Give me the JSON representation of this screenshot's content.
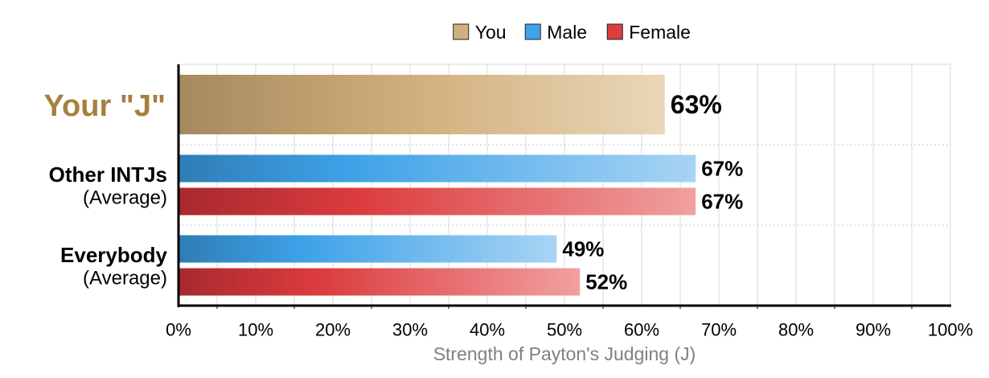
{
  "chart_data": {
    "type": "bar",
    "orientation": "horizontal",
    "xlabel": "Strength of Payton's Judging (J)",
    "xlim": [
      0,
      100
    ],
    "ticks": [
      "0%",
      "10%",
      "20%",
      "30%",
      "40%",
      "50%",
      "60%",
      "70%",
      "80%",
      "90%",
      "100%"
    ],
    "grid": true,
    "legend": {
      "placement": "top-center",
      "items": [
        {
          "name": "You",
          "color": "#d2b07e"
        },
        {
          "name": "Male",
          "color": "#3fa4ea"
        },
        {
          "name": "Female",
          "color": "#dd3d3d"
        }
      ]
    },
    "groups": [
      {
        "label": "Your \"J\"",
        "sublabel": "",
        "label_color": "#a67f3f",
        "bars": [
          {
            "series": "You",
            "value": 63,
            "label": "63%"
          }
        ]
      },
      {
        "label": "Other INTJs",
        "sublabel": "(Average)",
        "bars": [
          {
            "series": "Male",
            "value": 67,
            "label": "67%"
          },
          {
            "series": "Female",
            "value": 67,
            "label": "67%"
          }
        ]
      },
      {
        "label": "Everybody",
        "sublabel": "(Average)",
        "bars": [
          {
            "series": "Male",
            "value": 49,
            "label": "49%"
          },
          {
            "series": "Female",
            "value": 52,
            "label": "52%"
          }
        ]
      }
    ]
  }
}
